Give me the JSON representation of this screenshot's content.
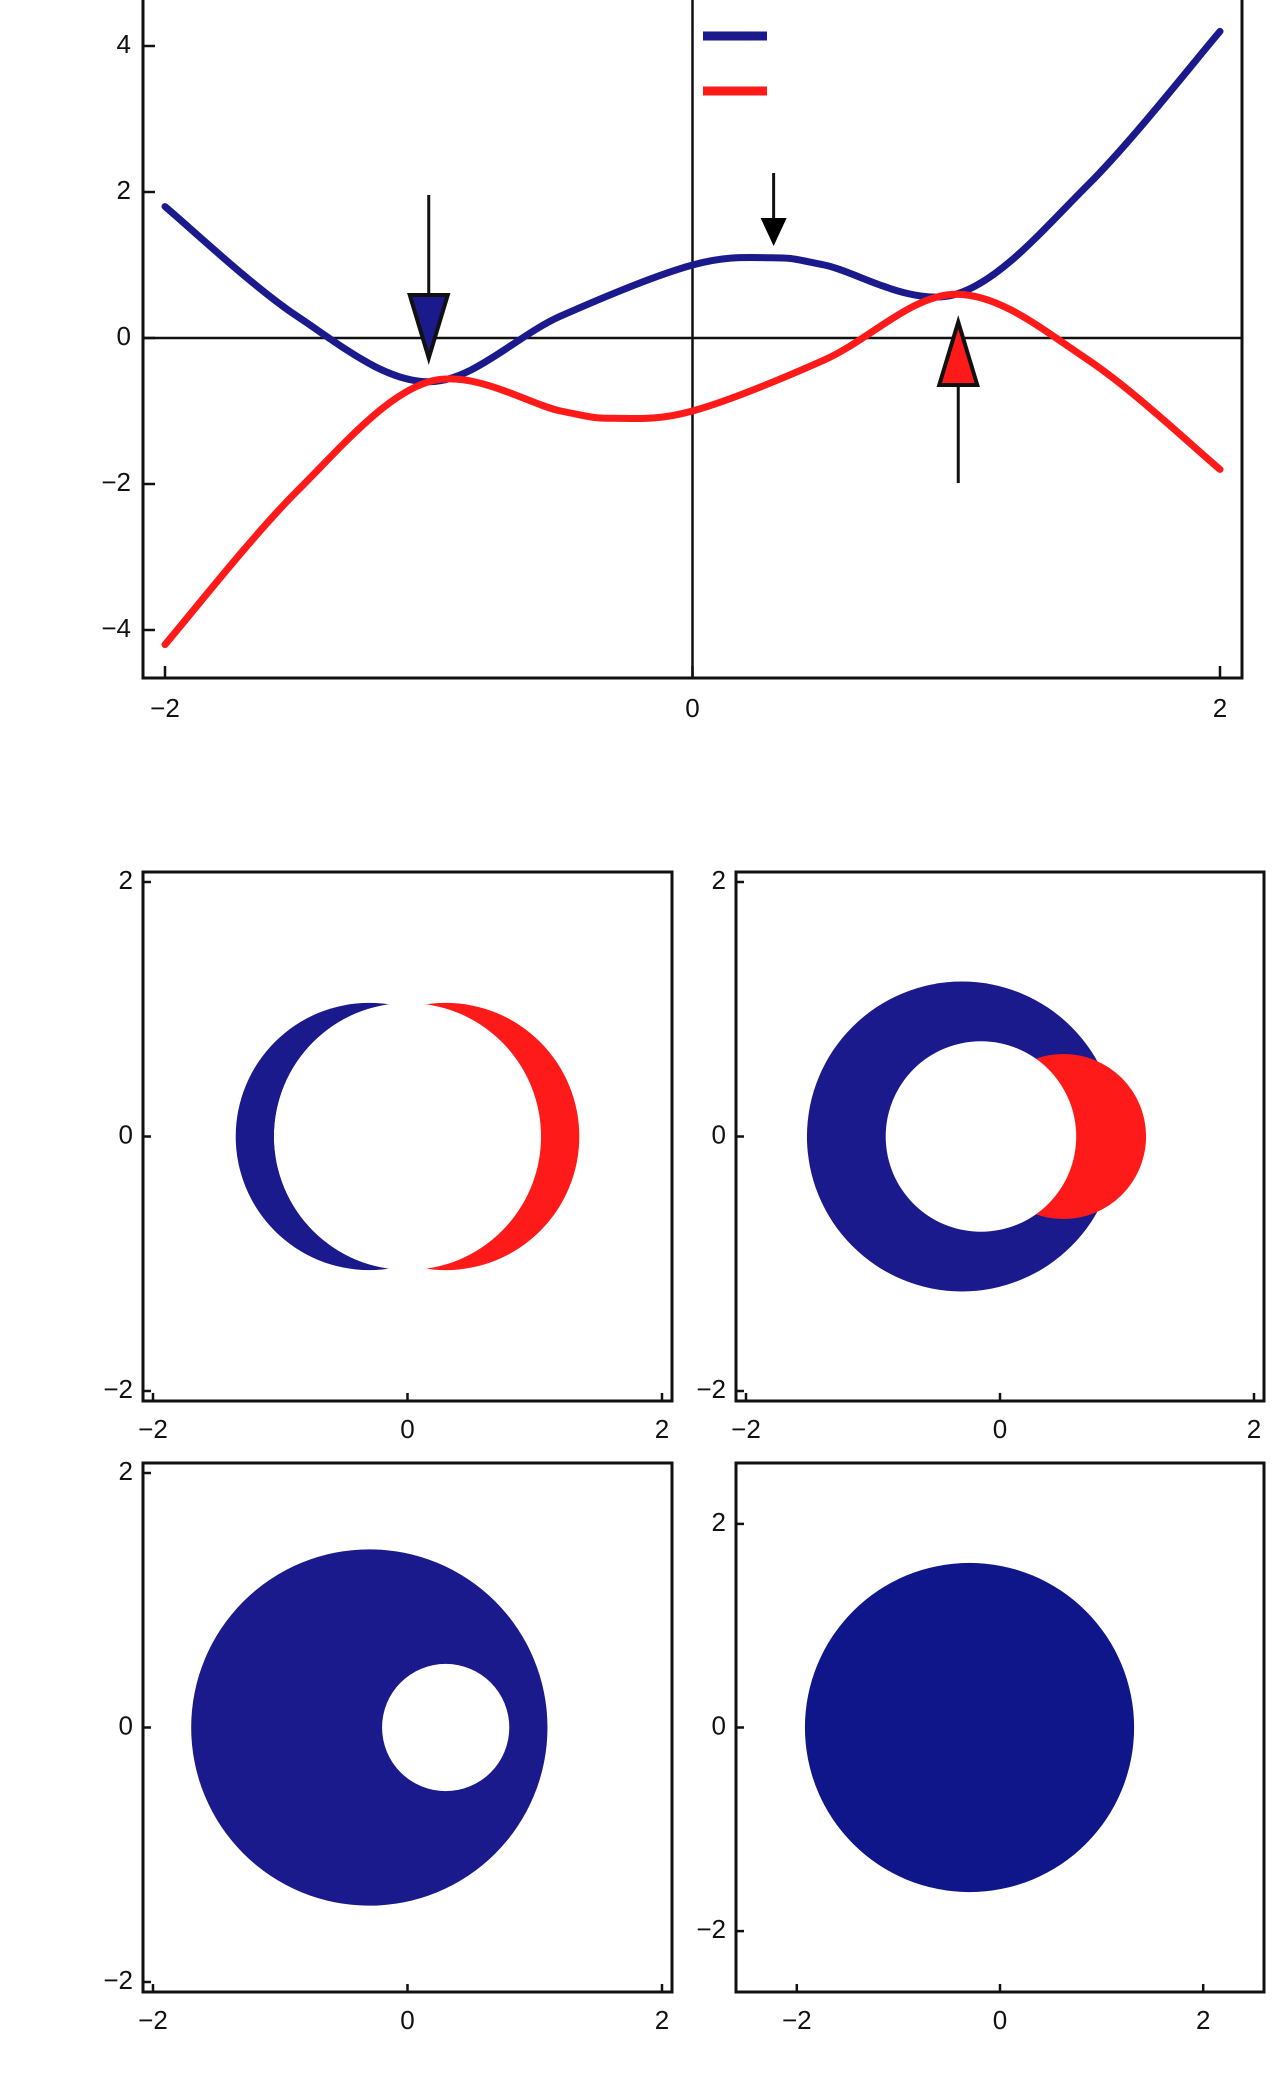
{
  "chart_data": [
    {
      "type": "line",
      "xlim": [
        -2,
        2
      ],
      "ylim": [
        -4.6,
        4.6
      ],
      "x_ticks": [
        -2,
        0,
        2
      ],
      "x_tick_labels": [
        "-2",
        "0",
        "2"
      ],
      "y_ticks": [
        -4,
        -2,
        0,
        2,
        4
      ],
      "y_tick_labels": [
        "-4",
        "-2",
        "0",
        "2",
        "4"
      ],
      "zero_axes": true,
      "grid": false,
      "legend": {
        "position": "top-center",
        "entries": [
          "",
          ""
        ]
      },
      "series": [
        {
          "color": "#1a1a8c",
          "x": [
            -2,
            -1.5,
            -1,
            -0.5,
            0,
            0.3,
            0.5,
            1,
            1.5,
            2
          ],
          "y": [
            1.8,
            0.3,
            -0.6,
            0.3,
            1.0,
            1.1,
            1.0,
            0.6,
            2.1,
            4.2
          ]
        },
        {
          "color": "#ff1a1a",
          "x": [
            -2,
            -1.5,
            -1,
            -0.5,
            -0.3,
            0,
            0.5,
            1,
            1.5,
            2
          ],
          "y": [
            -4.2,
            -2.1,
            -0.6,
            -1.0,
            -1.1,
            -1.0,
            -0.3,
            0.6,
            -0.3,
            -1.8
          ]
        }
      ],
      "annotations": [
        {
          "kind": "arrow-down",
          "x": -1,
          "y": -0.6,
          "fill": "#1a1a8c"
        },
        {
          "kind": "arrow-down",
          "x": 0.3,
          "y": 1.1,
          "fill": "#000000"
        },
        {
          "kind": "arrow-up",
          "x": 1,
          "y": 0.6,
          "fill": "#ff1a1a"
        }
      ]
    },
    {
      "type": "region",
      "xlim": [
        -2,
        2
      ],
      "ylim": [
        -2,
        2
      ],
      "x_tick_labels": [
        "-2",
        "0",
        "2"
      ],
      "y_tick_labels": [
        "-2",
        "0",
        "2"
      ],
      "shapes": [
        {
          "kind": "circle",
          "cx": -0.3,
          "cy": 0,
          "r": 1.05,
          "fill": "#1a1a8c"
        },
        {
          "kind": "circle-clip",
          "cx": 0.3,
          "cy": 0,
          "r": 1.05,
          "fill": "#ff1a1a",
          "clip_cx": 0.3,
          "clip_cy": 0,
          "clip_r": 1.05,
          "outside_cx": -0.3,
          "outside_cy": 0,
          "outside_r": 1.05
        },
        {
          "kind": "lens-hole",
          "c1": [
            -0.3,
            0
          ],
          "c2": [
            0.3,
            0
          ],
          "r1": 0.7,
          "r2": 0.7,
          "fill": "#ffffff"
        }
      ]
    },
    {
      "type": "region",
      "xlim": [
        -2,
        2
      ],
      "ylim": [
        -2,
        2
      ],
      "x_tick_labels": [
        "-2",
        "0",
        "2"
      ],
      "y_tick_labels": [
        "-2",
        "0",
        "2"
      ],
      "shapes": [
        {
          "kind": "circle",
          "cx": -0.3,
          "cy": 0,
          "r": 1.22,
          "fill": "#1a1a8c"
        },
        {
          "kind": "circle",
          "cx": 0.5,
          "cy": 0,
          "r": 0.65,
          "fill": "#ff1a1a"
        },
        {
          "kind": "circle",
          "cx": -0.15,
          "cy": 0,
          "r": 0.75,
          "fill": "#ffffff"
        }
      ]
    },
    {
      "type": "region",
      "xlim": [
        -2,
        2
      ],
      "ylim": [
        -2,
        2
      ],
      "x_tick_labels": [
        "-2",
        "0",
        "2"
      ],
      "y_tick_labels": [
        "-2",
        "0",
        "2"
      ],
      "shapes": [
        {
          "kind": "circle",
          "cx": -0.3,
          "cy": 0,
          "r": 1.4,
          "fill": "#1a1a8c"
        },
        {
          "kind": "circle",
          "cx": 0.3,
          "cy": 0,
          "r": 0.5,
          "fill": "#ffffff"
        }
      ]
    },
    {
      "type": "region",
      "xlim": [
        -2.5,
        2.5
      ],
      "ylim": [
        -2.5,
        2.5
      ],
      "x_tick_labels": [
        "-2",
        "0",
        "2"
      ],
      "y_tick_labels": [
        "-2",
        "0",
        "2"
      ],
      "shapes": [
        {
          "kind": "circle",
          "cx": -0.3,
          "cy": 0,
          "r": 1.62,
          "fill": "#0f168a"
        }
      ]
    }
  ]
}
